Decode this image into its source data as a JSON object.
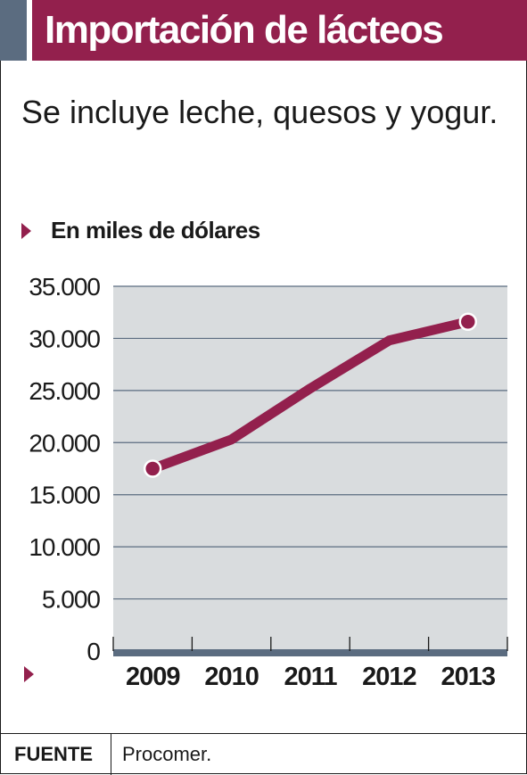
{
  "title": "Importación de lácteos",
  "subtitle": "Se incluye leche, quesos y yogur.",
  "unit_label": "En miles de dólares",
  "source": {
    "label": "FUENTE",
    "text": "Procomer."
  },
  "colors": {
    "accent": "#93204d",
    "side_block": "#5b6c80",
    "plot_bg": "#d9dcde",
    "axis_bar": "#5b6c80"
  },
  "chart_data": {
    "type": "line",
    "title": "Importación de lácteos",
    "subtitle": "Se incluye leche, quesos y yogur.",
    "ylabel": "En miles de dólares",
    "xlabel": "",
    "categories": [
      "2009",
      "2010",
      "2011",
      "2012",
      "2013"
    ],
    "series": [
      {
        "values": [
          17500,
          20300,
          25200,
          29800,
          31600
        ]
      }
    ],
    "ylim": [
      0,
      35000
    ],
    "yticks": [
      0,
      5000,
      10000,
      15000,
      20000,
      25000,
      30000,
      35000
    ],
    "ytick_labels": [
      "0",
      "5.000",
      "10.000",
      "15.000",
      "20.000",
      "25.000",
      "30.000",
      "35.000"
    ],
    "grid": true,
    "markers": "endpoints"
  }
}
